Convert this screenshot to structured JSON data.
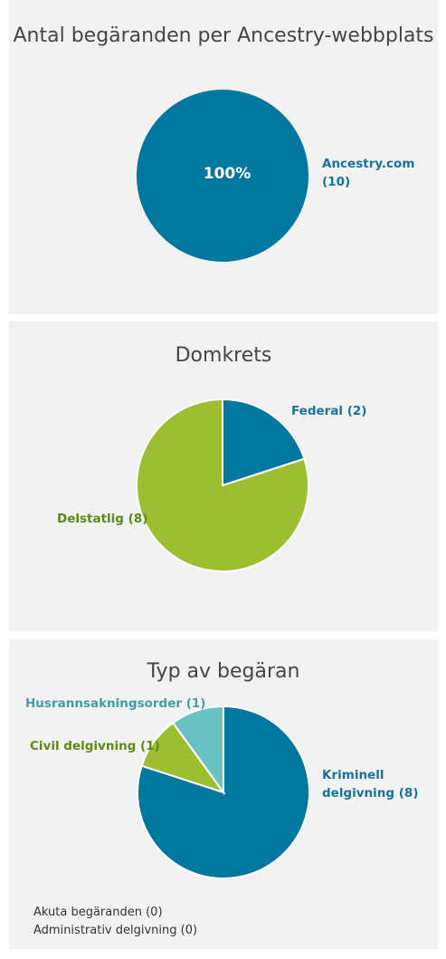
{
  "chart_data": [
    {
      "type": "pie",
      "title": "Antal begäranden per Ancestry-webbplats",
      "colors": [
        "#00779f"
      ],
      "slices": [
        {
          "label": "Ancestry.com (10)",
          "value": 10
        }
      ],
      "center_label": "100%"
    },
    {
      "type": "pie",
      "title": "Domkrets",
      "colors": [
        "#00779f",
        "#9ebe31"
      ],
      "slices": [
        {
          "label": "Federal (2)",
          "value": 2
        },
        {
          "label": "Delstatlig (8)",
          "value": 8
        }
      ]
    },
    {
      "type": "pie",
      "title": "Typ av begäran",
      "colors": [
        "#00779f",
        "#9ebe31",
        "#6ac2c3"
      ],
      "slices": [
        {
          "label": "Kriminell delgivning (8)",
          "label_lines": [
            "Kriminell",
            "delgivning (8)"
          ],
          "value": 8
        },
        {
          "label": "Civil delgivning (1)",
          "value": 1
        },
        {
          "label": "Husrannsakningsorder (1)",
          "value": 1
        }
      ],
      "zero_entries": [
        "Akuta begäranden (0)",
        "Administrativ delgivning (0)"
      ]
    }
  ]
}
